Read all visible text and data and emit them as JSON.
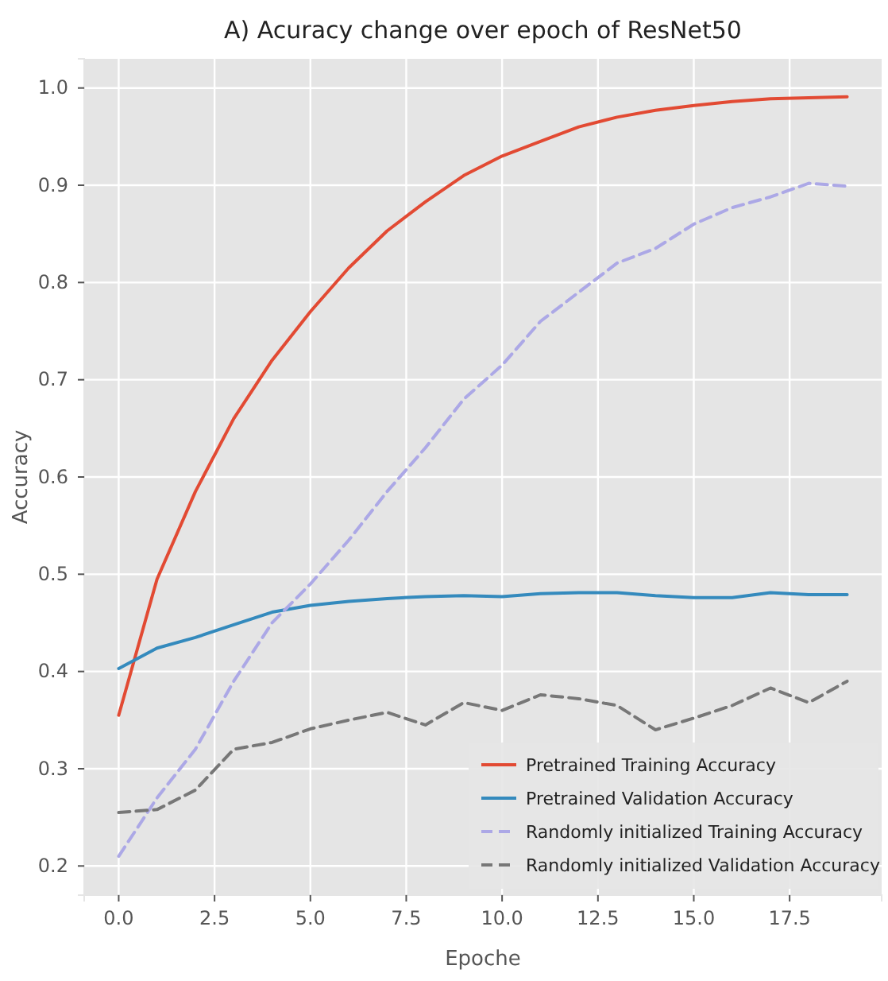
{
  "chart_data": {
    "type": "line",
    "title": "A) Acuracy change over epoch of ResNet50",
    "xlabel": "Epoche",
    "ylabel": "Accuracy",
    "x": [
      0,
      1,
      2,
      3,
      4,
      5,
      6,
      7,
      8,
      9,
      10,
      11,
      12,
      13,
      14,
      15,
      16,
      17,
      18,
      19
    ],
    "series": [
      {
        "name": "Pretrained Training Accuracy",
        "color": "#e24a33",
        "line_style": "solid",
        "values": [
          0.355,
          0.495,
          0.585,
          0.66,
          0.72,
          0.77,
          0.815,
          0.853,
          0.883,
          0.91,
          0.93,
          0.945,
          0.96,
          0.97,
          0.977,
          0.982,
          0.986,
          0.989,
          0.99,
          0.991
        ]
      },
      {
        "name": "Pretrained Validation Accuracy",
        "color": "#348abd",
        "line_style": "solid",
        "values": [
          0.403,
          0.424,
          0.435,
          0.448,
          0.461,
          0.468,
          0.472,
          0.475,
          0.477,
          0.478,
          0.477,
          0.48,
          0.481,
          0.481,
          0.478,
          0.476,
          0.476,
          0.481,
          0.479,
          0.479
        ]
      },
      {
        "name": "Randomly initialized Training Accuracy",
        "color": "#aca8e6",
        "line_style": "dashed",
        "values": [
          0.21,
          0.27,
          0.32,
          0.39,
          0.45,
          0.49,
          0.535,
          0.585,
          0.63,
          0.68,
          0.715,
          0.76,
          0.79,
          0.82,
          0.835,
          0.86,
          0.877,
          0.888,
          0.902,
          0.899
        ]
      },
      {
        "name": "Randomly initialized Validation Accuracy",
        "color": "#777777",
        "line_style": "dashed",
        "values": [
          0.255,
          0.258,
          0.278,
          0.32,
          0.327,
          0.341,
          0.35,
          0.358,
          0.345,
          0.368,
          0.36,
          0.376,
          0.372,
          0.365,
          0.34,
          0.352,
          0.365,
          0.383,
          0.368,
          0.39
        ]
      }
    ],
    "xlim": [
      -0.9,
      19.9
    ],
    "ylim": [
      0.17,
      1.03
    ],
    "xticks": [
      {
        "value": 0,
        "label": "0.0"
      },
      {
        "value": 2.5,
        "label": "2.5"
      },
      {
        "value": 5,
        "label": "5.0"
      },
      {
        "value": 7.5,
        "label": "7.5"
      },
      {
        "value": 10,
        "label": "10.0"
      },
      {
        "value": 12.5,
        "label": "12.5"
      },
      {
        "value": 15,
        "label": "15.0"
      },
      {
        "value": 17.5,
        "label": "17.5"
      }
    ],
    "yticks": [
      0.2,
      0.3,
      0.4,
      0.5,
      0.6,
      0.7,
      0.8,
      0.9,
      {
        "value": 1,
        "label": "1.0"
      }
    ],
    "grid": true,
    "legend": "bottom right",
    "marker": "none"
  }
}
